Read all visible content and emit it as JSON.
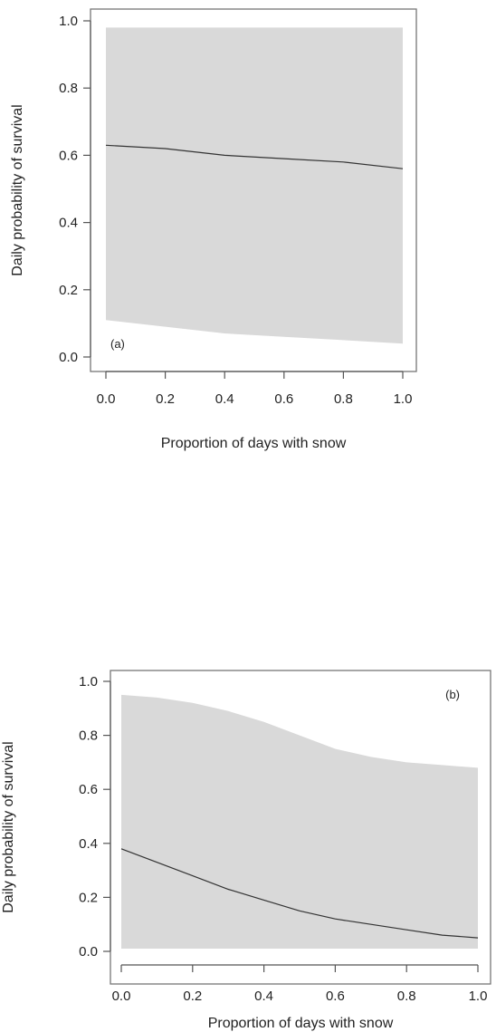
{
  "chart_data": [
    {
      "type": "area",
      "panel_label": "(a)",
      "xlabel": "Proportion of days with snow",
      "ylabel": "Daily probability of survival",
      "xlim": [
        0,
        1
      ],
      "ylim": [
        0,
        1
      ],
      "xticks": [
        "0.0",
        "0.2",
        "0.4",
        "0.6",
        "0.8",
        "1.0"
      ],
      "yticks": [
        "0.0",
        "0.2",
        "0.4",
        "0.6",
        "0.8",
        "1.0"
      ],
      "grid": false,
      "panel_label_position": "bottom-left",
      "band_color": "#d9d9d9",
      "line_color": "#333333",
      "x": [
        0.0,
        0.2,
        0.4,
        0.6,
        0.8,
        1.0
      ],
      "estimate": [
        0.63,
        0.62,
        0.6,
        0.59,
        0.58,
        0.56
      ],
      "lower": [
        0.11,
        0.09,
        0.07,
        0.06,
        0.05,
        0.04
      ],
      "upper": [
        0.98,
        0.98,
        0.98,
        0.98,
        0.98,
        0.98
      ]
    },
    {
      "type": "area",
      "panel_label": "(b)",
      "xlabel": "Proportion of days with snow",
      "ylabel": "Daily probability of survival",
      "xlim": [
        0,
        1
      ],
      "ylim": [
        0,
        1
      ],
      "xticks": [
        "0.0",
        "0.2",
        "0.4",
        "0.6",
        "0.8",
        "1.0"
      ],
      "yticks": [
        "0.0",
        "0.2",
        "0.4",
        "0.6",
        "0.8",
        "1.0"
      ],
      "grid": false,
      "panel_label_position": "top-right",
      "band_color": "#d9d9d9",
      "line_color": "#333333",
      "x": [
        0.0,
        0.1,
        0.2,
        0.3,
        0.4,
        0.5,
        0.6,
        0.7,
        0.8,
        0.9,
        1.0
      ],
      "estimate": [
        0.38,
        0.33,
        0.28,
        0.23,
        0.19,
        0.15,
        0.12,
        0.1,
        0.08,
        0.06,
        0.05
      ],
      "lower": [
        0.01,
        0.01,
        0.01,
        0.01,
        0.01,
        0.01,
        0.01,
        0.01,
        0.01,
        0.01,
        0.01
      ],
      "upper": [
        0.95,
        0.94,
        0.92,
        0.89,
        0.85,
        0.8,
        0.75,
        0.72,
        0.7,
        0.69,
        0.68
      ]
    }
  ]
}
